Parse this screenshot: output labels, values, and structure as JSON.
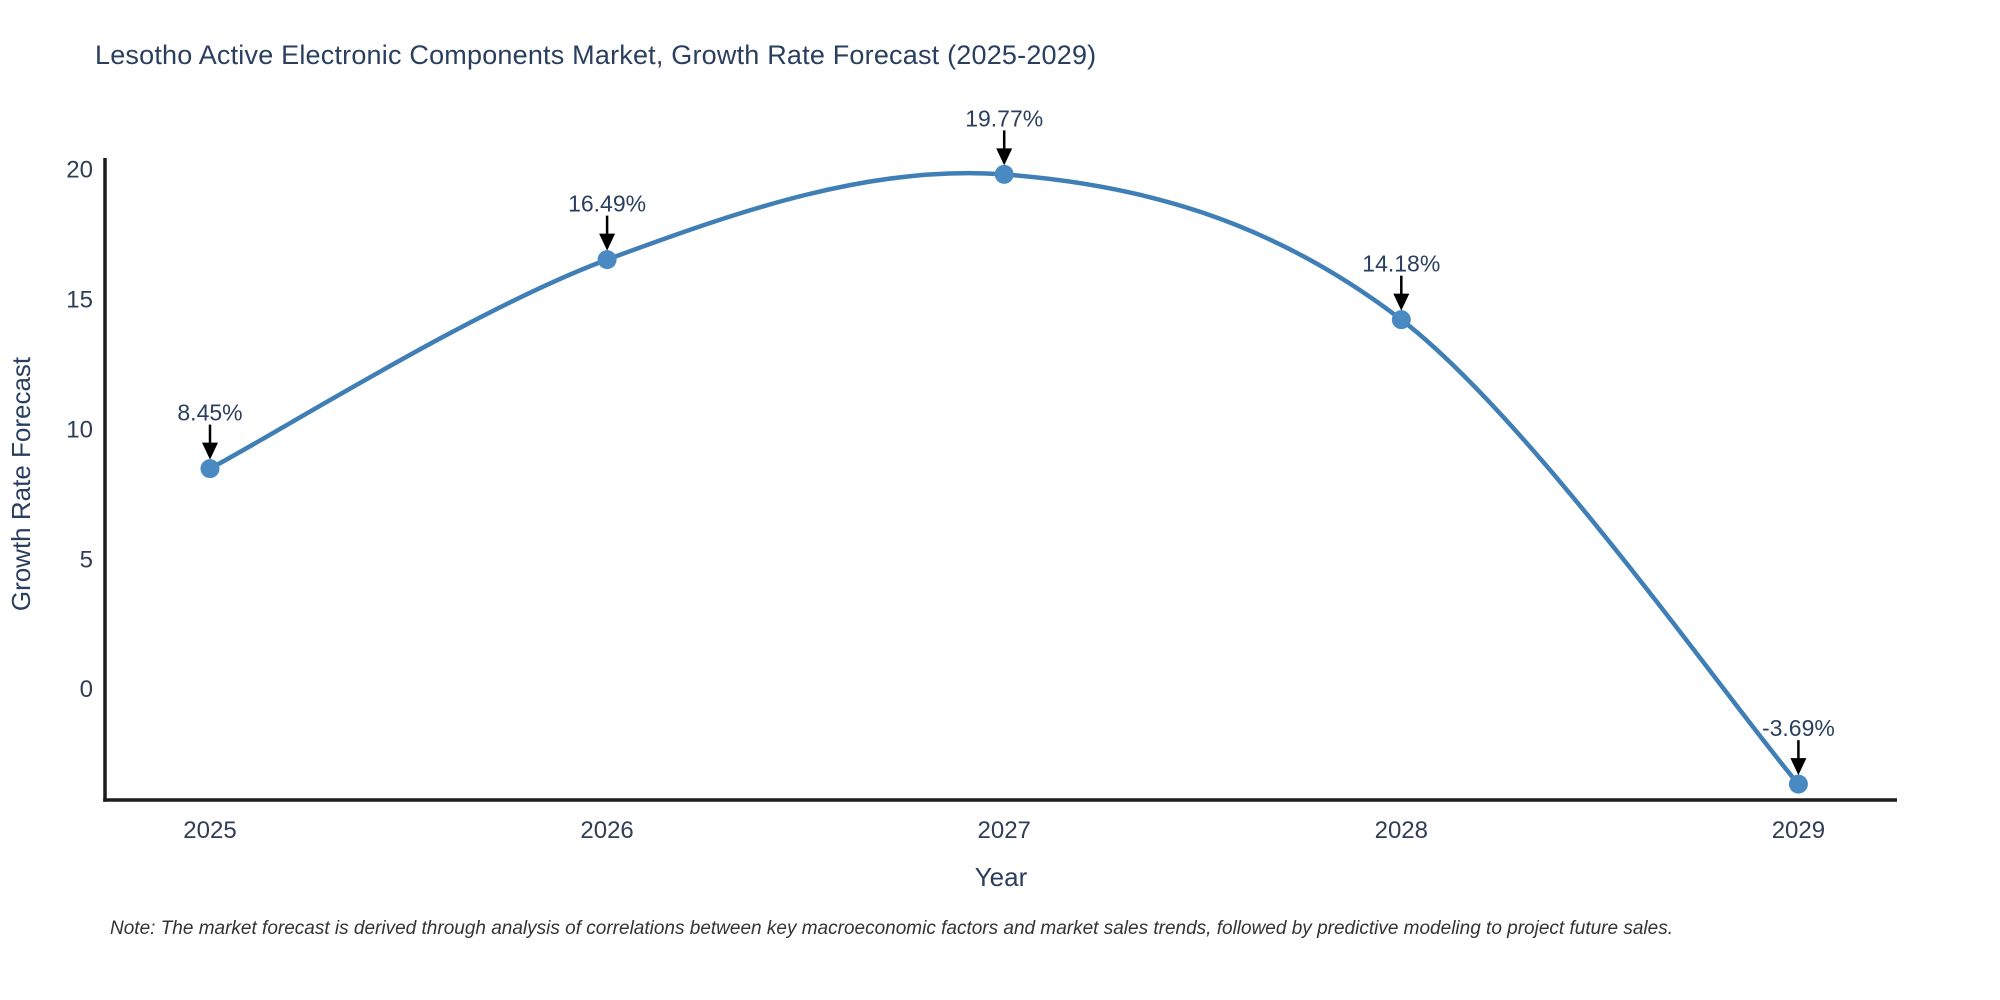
{
  "chart_data": {
    "type": "line",
    "title": "Lesotho Active Electronic Components Market, Growth Rate Forecast (2025-2029)",
    "xlabel": "Year",
    "ylabel": "Growth Rate Forecast",
    "categories": [
      "2025",
      "2026",
      "2027",
      "2028",
      "2029"
    ],
    "values": [
      8.45,
      16.49,
      19.77,
      14.18,
      -3.69
    ],
    "point_labels": [
      "8.45%",
      "16.49%",
      "19.77%",
      "14.18%",
      "-3.69%"
    ],
    "yticks": [
      20,
      15,
      10,
      5,
      0
    ],
    "ylim": [
      -4.3,
      20.4
    ],
    "line_shape": "spline",
    "grid": false,
    "legend": "none",
    "note": "Note: The market forecast is derived through analysis of correlations between key macroeconomic factors and market sales trends, followed by predictive modeling to project future sales.",
    "colors": {
      "line": "#3f7fb5",
      "marker": "#4a8ac2",
      "axis_line": "#1c1c1c",
      "title_text": "#2a3f5f",
      "tick_text": "#2f3e55",
      "annotation_text": "#2a3f5f",
      "annotation_arrow": "#000000",
      "note_text": "#333333",
      "background": "#ffffff"
    }
  }
}
